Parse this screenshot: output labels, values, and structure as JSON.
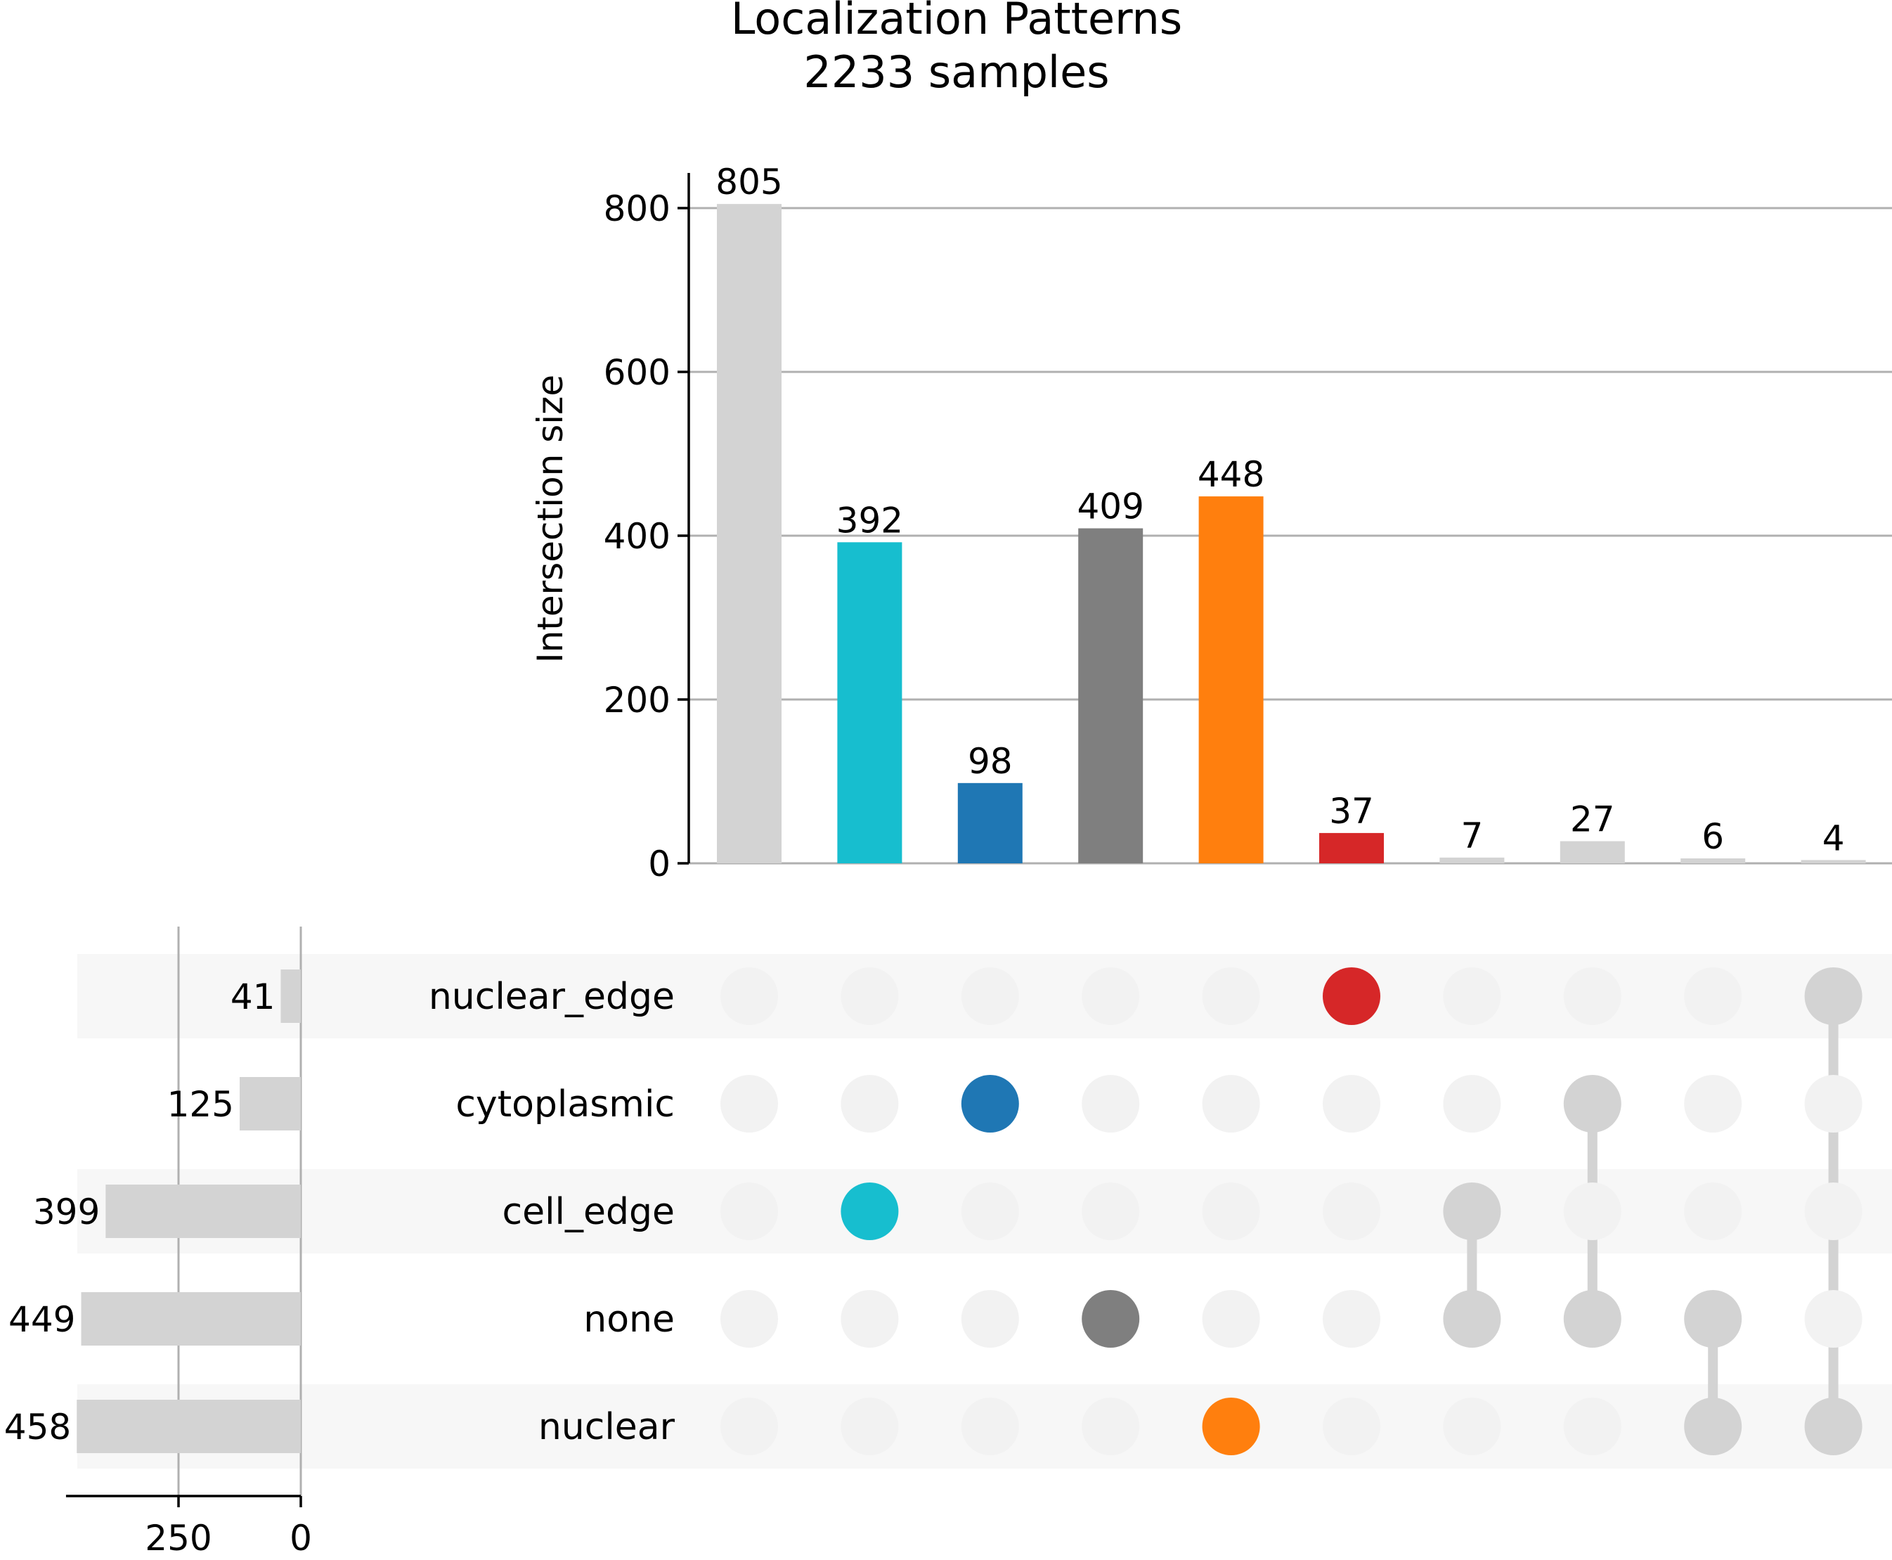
{
  "chart_data": {
    "type": "upset",
    "title": "Localization Patterns",
    "subtitle": "2233 samples",
    "intersections_axis": {
      "ylabel": "Intersection size",
      "ylim": [
        0,
        845
      ],
      "ticks": [
        0,
        200,
        400,
        600,
        800
      ],
      "grid": true
    },
    "sets": [
      {
        "name": "nuclear_edge",
        "size": 41
      },
      {
        "name": "cytoplasmic",
        "size": 125
      },
      {
        "name": "cell_edge",
        "size": 399
      },
      {
        "name": "none",
        "size": 449
      },
      {
        "name": "nuclear",
        "size": 458
      }
    ],
    "set_size_axis": {
      "ticks": [
        250,
        0
      ],
      "xlim_max": 480,
      "grid": true
    },
    "intersections": [
      {
        "size": 805,
        "members": [],
        "color": "#d3d3d3"
      },
      {
        "size": 392,
        "members": [
          "cell_edge"
        ],
        "color": "#17becf"
      },
      {
        "size": 98,
        "members": [
          "cytoplasmic"
        ],
        "color": "#1f77b4"
      },
      {
        "size": 409,
        "members": [
          "none"
        ],
        "color": "#7f7f7f"
      },
      {
        "size": 448,
        "members": [
          "nuclear"
        ],
        "color": "#ff7f0e"
      },
      {
        "size": 37,
        "members": [
          "nuclear_edge"
        ],
        "color": "#d62728"
      },
      {
        "size": 7,
        "members": [
          "cell_edge",
          "none"
        ],
        "color": "#d3d3d3"
      },
      {
        "size": 27,
        "members": [
          "cytoplasmic",
          "none"
        ],
        "color": "#d3d3d3"
      },
      {
        "size": 6,
        "members": [
          "none",
          "nuclear"
        ],
        "color": "#d3d3d3"
      },
      {
        "size": 4,
        "members": [
          "nuclear_edge",
          "nuclear"
        ],
        "color": "#d3d3d3"
      }
    ],
    "colors": {
      "inactive_dot": "#f2f2f2",
      "shading": "#f7f7f7",
      "gridline": "#b0b0b0",
      "set_bar": "#d3d3d3"
    }
  }
}
